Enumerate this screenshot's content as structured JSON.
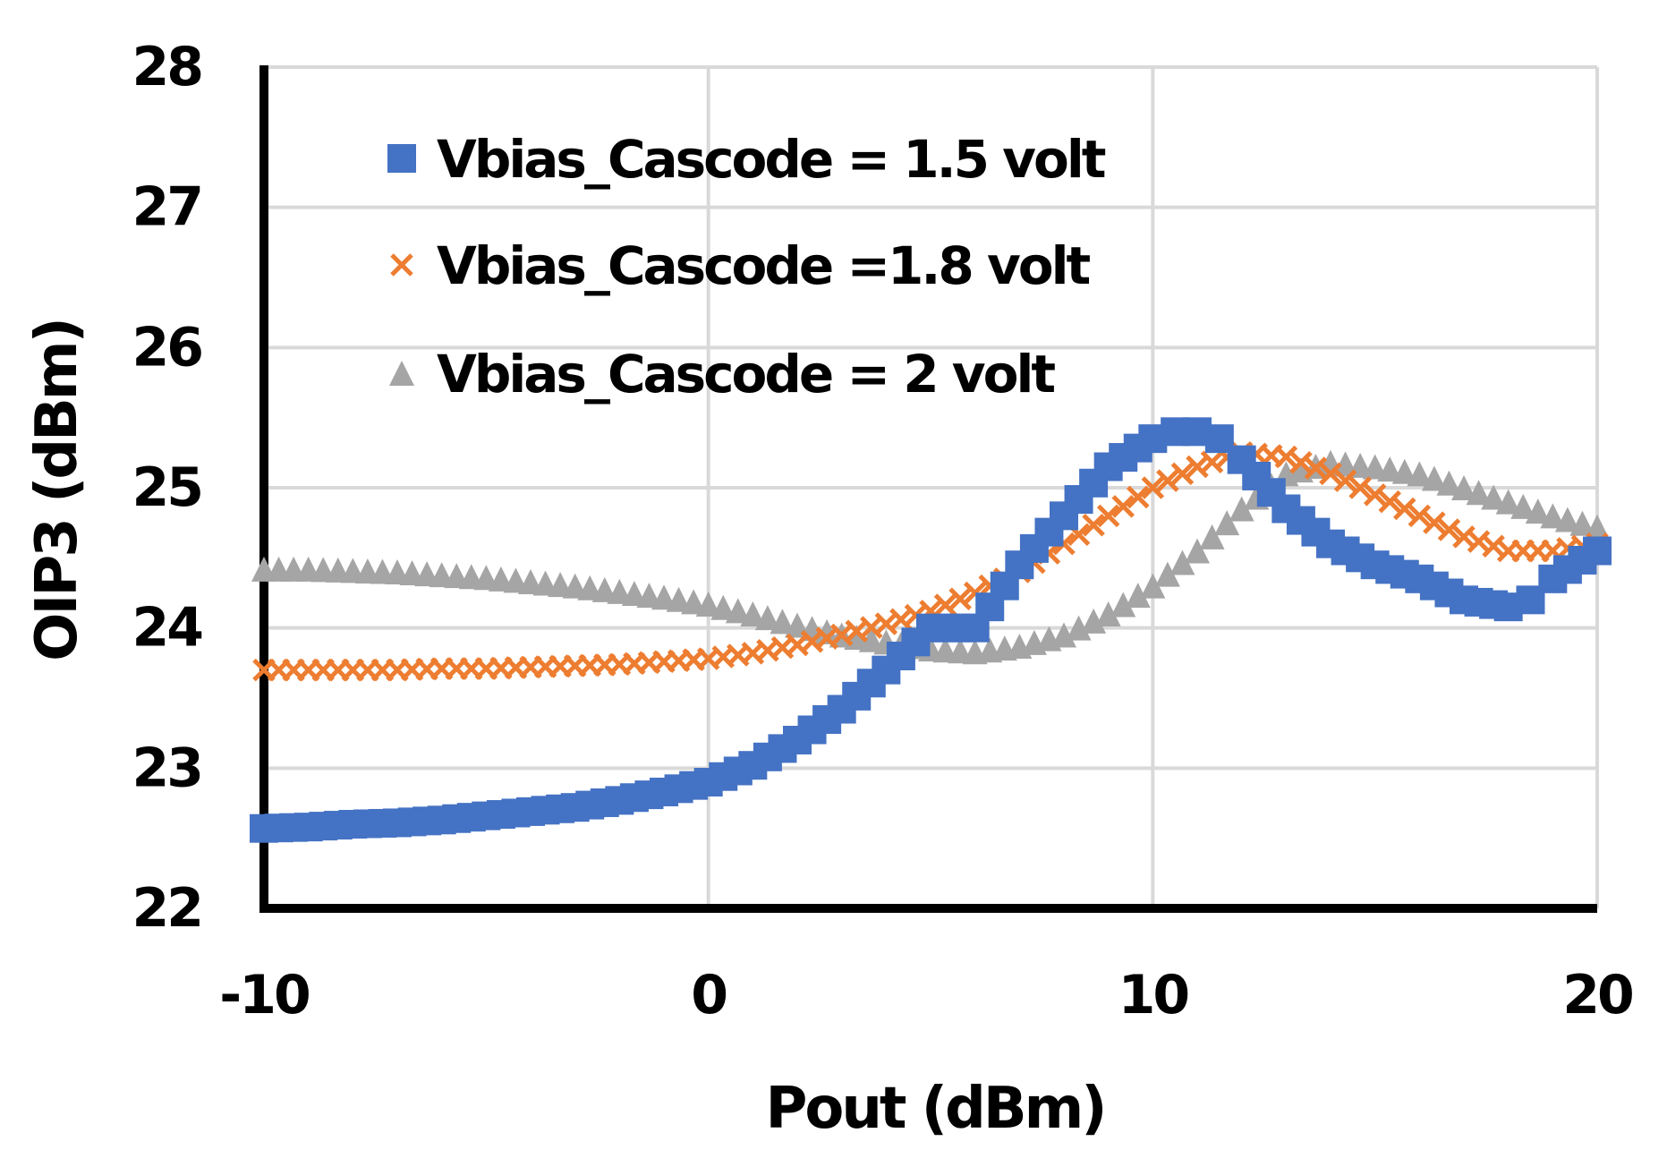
{
  "chart_data": {
    "type": "scatter",
    "title": "",
    "xlabel": "Pout (dBm)",
    "ylabel": "OIP3 (dBm)",
    "xlim": [
      -10,
      20
    ],
    "ylim": [
      22,
      28
    ],
    "x_ticks": [
      -10,
      0,
      10,
      20
    ],
    "y_ticks": [
      22,
      23,
      24,
      25,
      26,
      27,
      28
    ],
    "grid": true,
    "legend_position": "top-left",
    "series": [
      {
        "name": "Vbias_Cascode = 1.5 volt",
        "marker": "square",
        "color": "#4472C4",
        "x": [
          -10,
          -9,
          -8,
          -7,
          -6,
          -5,
          -4,
          -3,
          -2,
          -1,
          0,
          1,
          2,
          3,
          4,
          5,
          6,
          7,
          8,
          9,
          10,
          10.5,
          11,
          11.5,
          12,
          13,
          14,
          15,
          16,
          17,
          18,
          18.5,
          19,
          20
        ],
        "y": [
          22.57,
          22.58,
          22.6,
          22.61,
          22.63,
          22.66,
          22.69,
          22.72,
          22.77,
          22.83,
          22.9,
          23.02,
          23.2,
          23.42,
          23.7,
          24.0,
          24.0,
          24.45,
          24.8,
          25.15,
          25.35,
          25.4,
          25.4,
          25.35,
          25.2,
          24.85,
          24.6,
          24.45,
          24.35,
          24.2,
          24.15,
          24.2,
          24.35,
          24.55
        ]
      },
      {
        "name": "Vbias_Cascode =1.8 volt",
        "marker": "x",
        "color": "#ED7D31",
        "x": [
          -10,
          -9,
          -8,
          -7,
          -6,
          -5,
          -4,
          -3,
          -2,
          -1,
          0,
          1,
          2,
          3,
          4,
          5,
          6,
          7,
          8,
          9,
          10,
          11,
          12,
          13,
          14,
          15,
          16,
          17,
          18,
          19,
          20
        ],
        "y": [
          23.7,
          23.7,
          23.7,
          23.7,
          23.71,
          23.71,
          23.72,
          23.73,
          23.74,
          23.76,
          23.78,
          23.82,
          23.88,
          23.95,
          24.03,
          24.12,
          24.25,
          24.4,
          24.6,
          24.8,
          25.0,
          25.15,
          25.25,
          25.22,
          25.1,
          24.95,
          24.8,
          24.65,
          24.55,
          24.55,
          24.6
        ]
      },
      {
        "name": "Vbias_Cascode = 2 volt",
        "marker": "triangle",
        "color": "#A5A5A5",
        "x": [
          -10,
          -9,
          -8,
          -7,
          -6,
          -5,
          -4,
          -3,
          -2,
          -1,
          0,
          1,
          2,
          3,
          4,
          5,
          6,
          7,
          8,
          9,
          10,
          11,
          12,
          13,
          14,
          15,
          16,
          17,
          18,
          19,
          20
        ],
        "y": [
          24.42,
          24.42,
          24.41,
          24.4,
          24.38,
          24.36,
          24.33,
          24.3,
          24.26,
          24.22,
          24.17,
          24.1,
          24.02,
          23.95,
          23.9,
          23.85,
          23.83,
          23.87,
          23.95,
          24.1,
          24.3,
          24.55,
          24.85,
          25.1,
          25.18,
          25.15,
          25.1,
          25.0,
          24.9,
          24.8,
          24.72
        ]
      }
    ]
  }
}
